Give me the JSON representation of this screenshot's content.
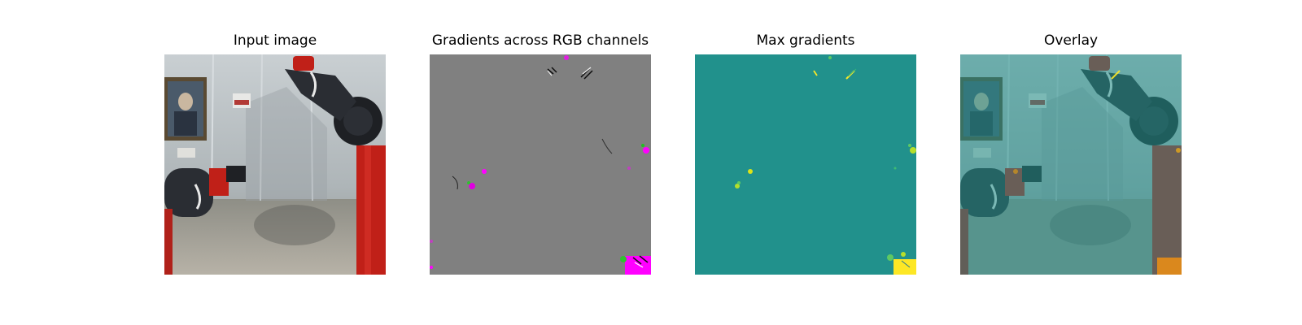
{
  "figure": {
    "panels": [
      {
        "title": "Input image",
        "depicts": "robot-arms-lab-scene"
      },
      {
        "title": "Gradients across RGB channels",
        "depicts": "rgb-gradient-map"
      },
      {
        "title": "Max gradients",
        "depicts": "max-gradient-heatmap"
      },
      {
        "title": "Overlay",
        "depicts": "heatmap-overlay-on-input"
      }
    ],
    "colors": {
      "grad_gray": "#808080",
      "heat_teal": "#21918c",
      "heat_yellow": "#fde725",
      "robot_red": "#c02018",
      "robot_dark": "#2a2d33",
      "accent_magenta": "#ff00ff"
    }
  }
}
